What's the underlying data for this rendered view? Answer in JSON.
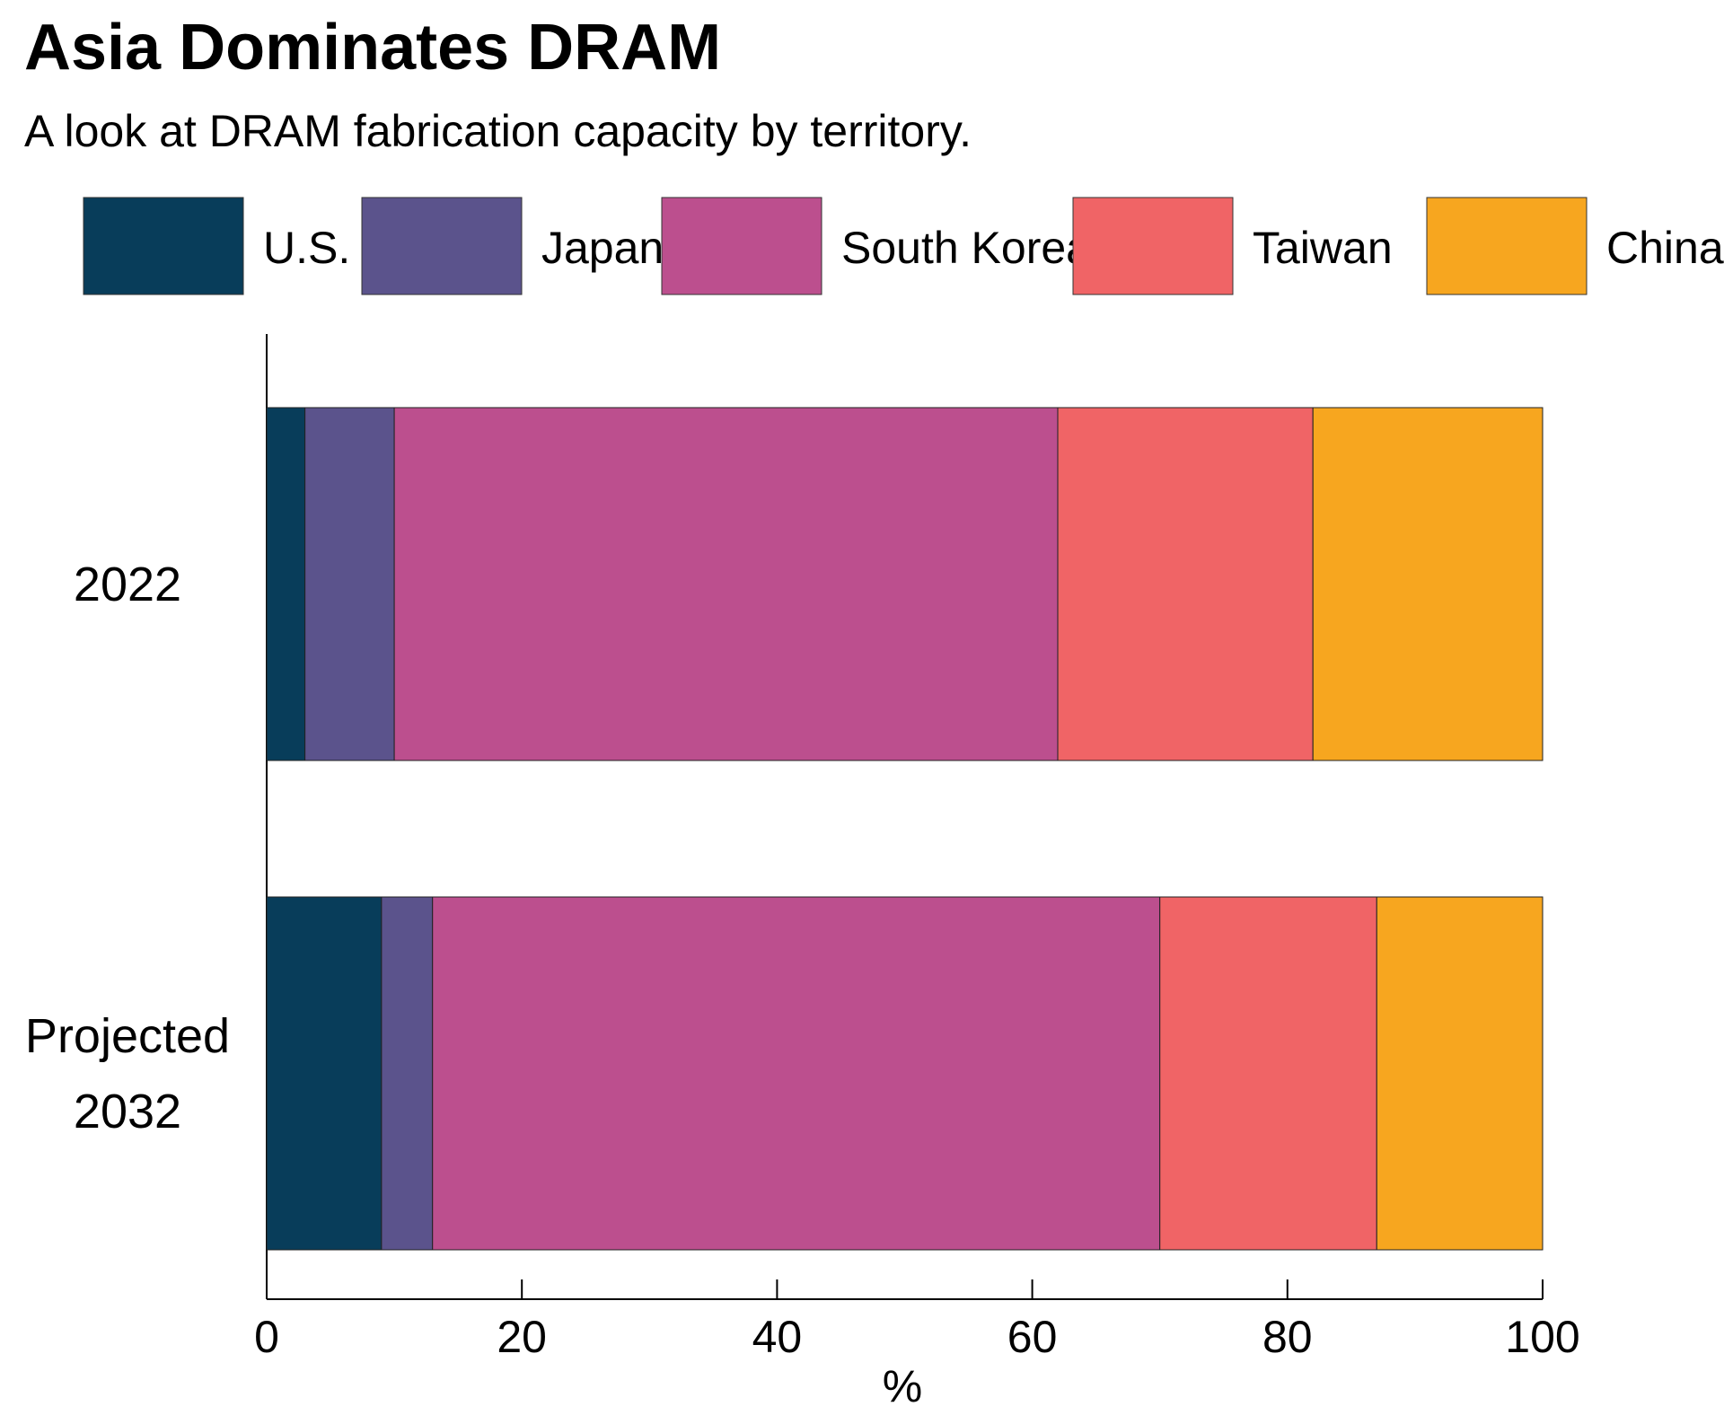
{
  "chart_data": {
    "type": "stacked-bar-horizontal",
    "title": "Asia Dominates DRAM",
    "subtitle": "A look at DRAM fabrication capacity by territory.",
    "x_label": "%",
    "categories": [
      "2022",
      "Projected 2032"
    ],
    "series": [
      {
        "name": "U.S.",
        "color": "#083d5a",
        "values": [
          3,
          9
        ]
      },
      {
        "name": "Japan",
        "color": "#5b538c",
        "values": [
          7,
          4
        ]
      },
      {
        "name": "South Korea",
        "color": "#bc4f8e",
        "values": [
          52,
          57
        ]
      },
      {
        "name": "Taiwan",
        "color": "#f06466",
        "values": [
          20,
          17
        ]
      },
      {
        "name": "China",
        "color": "#f7a61f",
        "values": [
          18,
          13
        ]
      }
    ],
    "xlim": [
      0,
      100
    ],
    "xticks": [
      0,
      20,
      40,
      60,
      80,
      100
    ],
    "legend": "top"
  }
}
